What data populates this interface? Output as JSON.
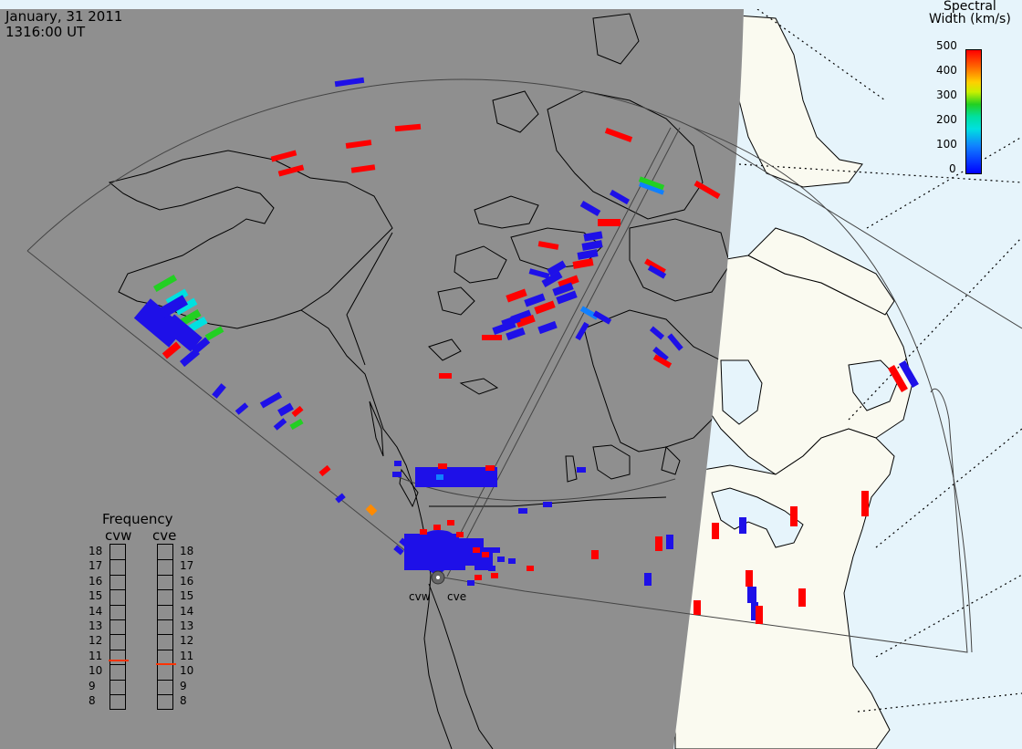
{
  "header": {
    "date": "January, 31 2011",
    "time": "1316:00 UT"
  },
  "colorbar": {
    "title_line1": "Spectral",
    "title_line2": "Width (km/s)",
    "ticks": [
      "500",
      "400",
      "300",
      "200",
      "100",
      "0"
    ],
    "colors": [
      "#ff0000",
      "#ff8a00",
      "#f0e000",
      "#22d022",
      "#00e0e0",
      "#1060ff",
      "#0000ff"
    ]
  },
  "frequency": {
    "title": "Frequency",
    "radars": [
      {
        "name": "cvw",
        "value": 10.8
      },
      {
        "name": "cve",
        "value": 10.6
      }
    ],
    "levels": [
      "18",
      "17",
      "16",
      "15",
      "14",
      "13",
      "12",
      "11",
      "10",
      "9",
      "8"
    ]
  },
  "radars": {
    "west": "cvw",
    "east": "cve"
  },
  "colors": {
    "night": "#8f8f8f",
    "day_land": "#fafaf0",
    "day_water": "#e6f4fb",
    "low_width": "#1e10e8",
    "high_width": "#ff0000"
  }
}
